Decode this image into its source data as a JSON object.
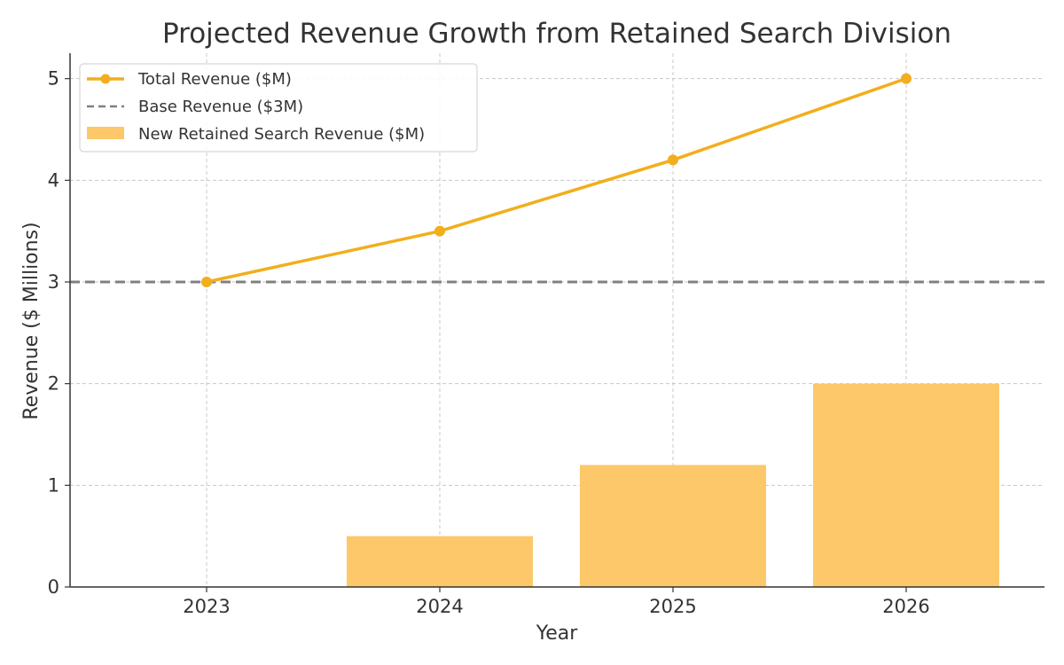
{
  "chart_data": {
    "type": "bar",
    "title": "Projected Revenue Growth from Retained Search Division",
    "xlabel": "Year",
    "ylabel": "Revenue ($ Millions)",
    "categories": [
      "2023",
      "2024",
      "2025",
      "2026"
    ],
    "ylim": [
      0,
      5.25
    ],
    "yticks": [
      0,
      1,
      2,
      3,
      4,
      5
    ],
    "grid": true,
    "legend_position": "top-left",
    "series": [
      {
        "name": "Total Revenue ($M)",
        "type": "line",
        "marker": "circle",
        "color": "#F2AE1C",
        "values": [
          3.0,
          3.5,
          4.2,
          5.0
        ]
      },
      {
        "name": "Base Revenue ($3M)",
        "type": "hline",
        "style": "dashed",
        "color": "#808080",
        "value": 3
      },
      {
        "name": "New Retained Search Revenue ($M)",
        "type": "bar",
        "color": "#FCC869",
        "values": [
          0,
          0.5,
          1.2,
          2.0
        ]
      }
    ]
  }
}
